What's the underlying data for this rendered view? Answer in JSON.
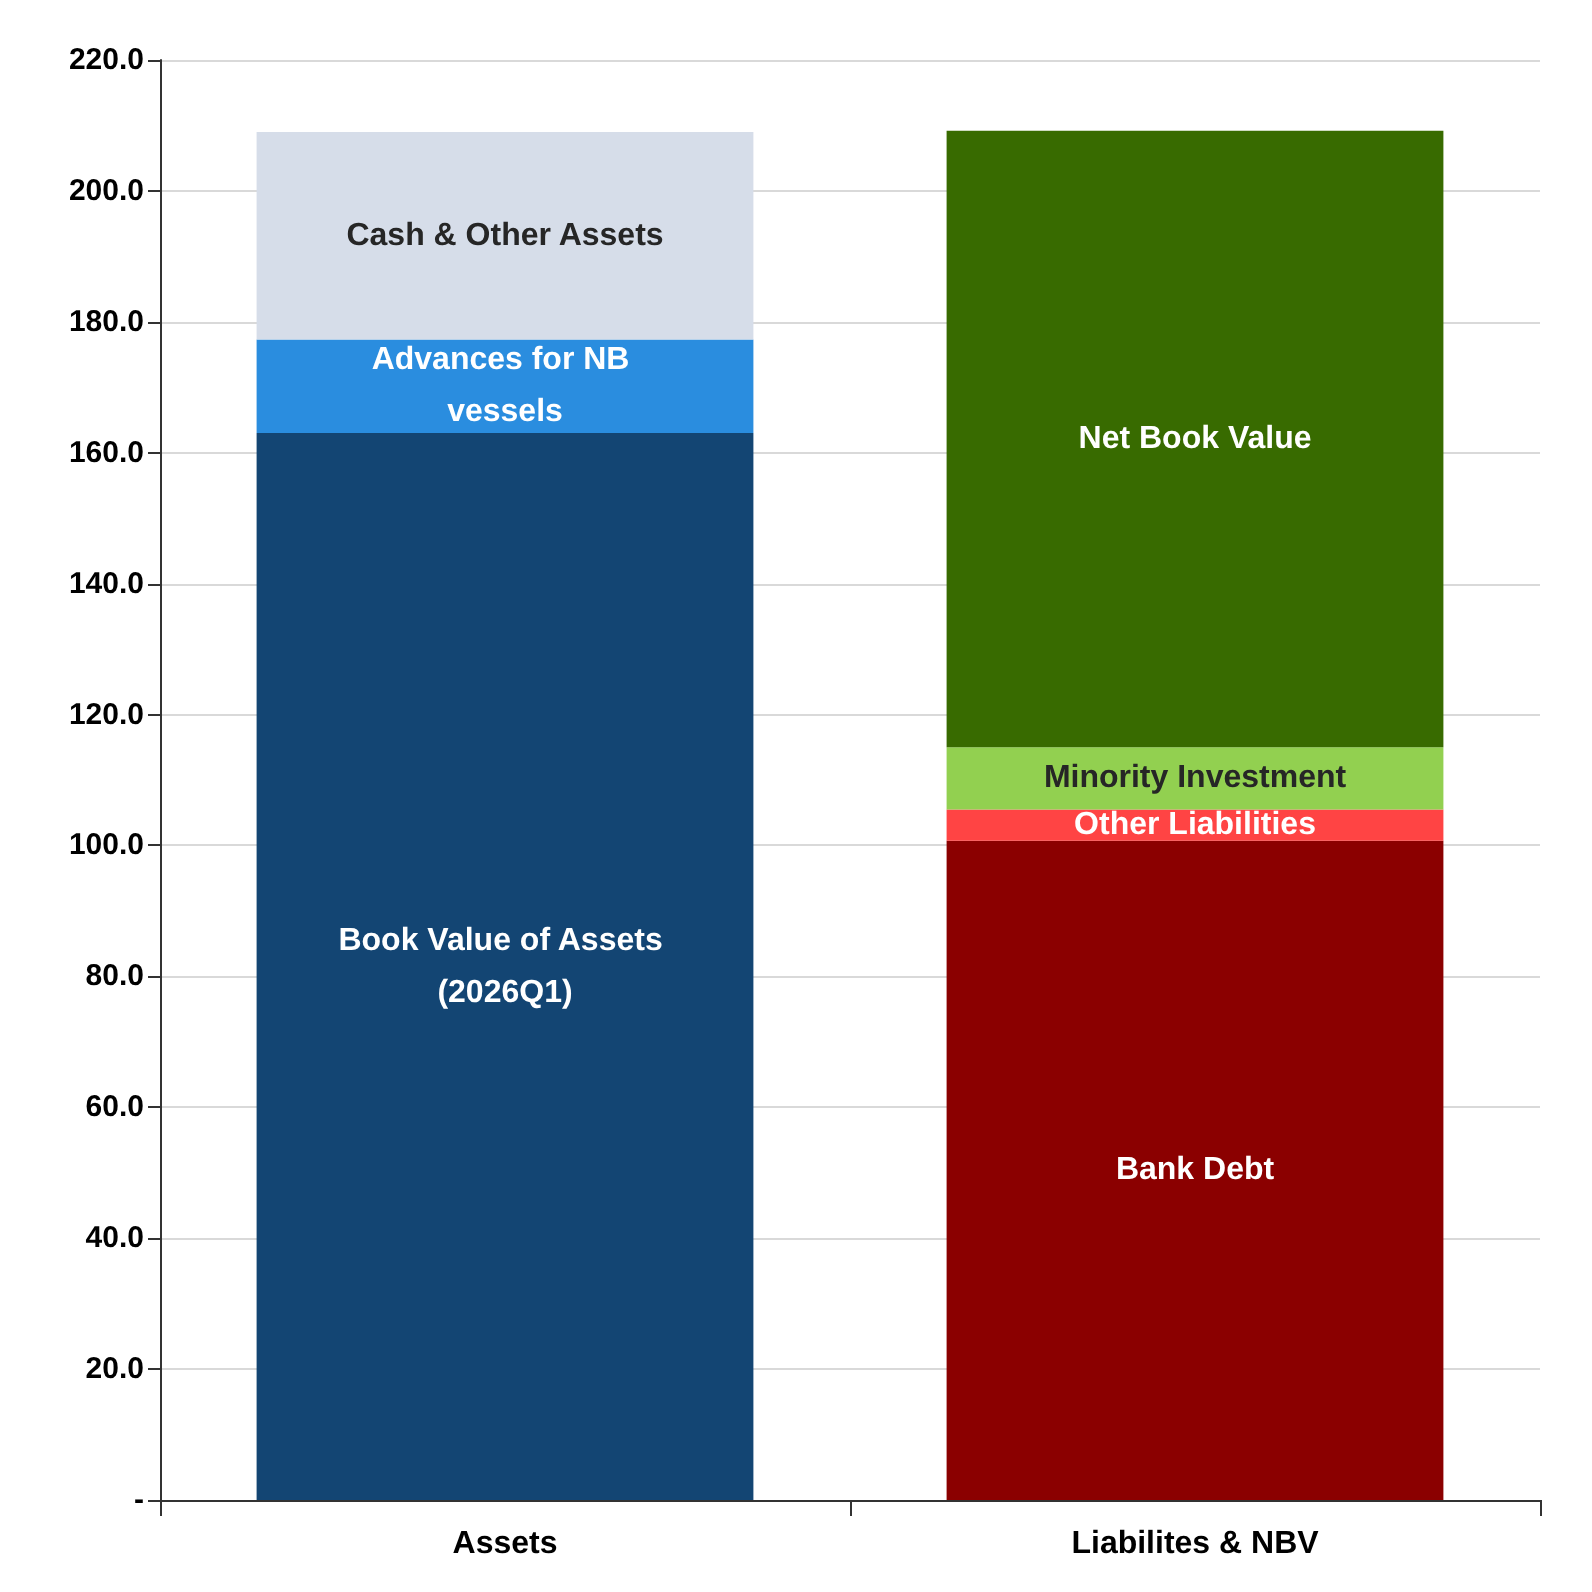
{
  "chart_data": {
    "type": "bar",
    "stacked": true,
    "categories": [
      "Assets",
      "Liabilites & NBV"
    ],
    "series": [
      {
        "name": "Book Value of Assets (2026Q1)",
        "color": "#134573",
        "values": [
          163.0,
          null
        ]
      },
      {
        "name": "Advances for NB vessels",
        "color": "#2a8ddf",
        "values": [
          14.3,
          null
        ]
      },
      {
        "name": "Cash & Other Assets",
        "color": "#d6dde9",
        "values": [
          31.7,
          null
        ]
      },
      {
        "name": "Bank Debt",
        "color": "#8b0000",
        "values": [
          null,
          100.7
        ]
      },
      {
        "name": "Other Liabilities",
        "color": "#ff4444",
        "values": [
          null,
          4.8
        ]
      },
      {
        "name": "Minority Investment",
        "color": "#92d050",
        "values": [
          null,
          9.5
        ]
      },
      {
        "name": "Net Book Value",
        "color": "#386b00",
        "values": [
          null,
          94.2
        ]
      }
    ],
    "ylim": [
      0,
      220
    ],
    "yticks": [
      {
        "value": 0,
        "label": "-"
      },
      {
        "value": 20,
        "label": "20.0"
      },
      {
        "value": 40,
        "label": "40.0"
      },
      {
        "value": 60,
        "label": "60.0"
      },
      {
        "value": 80,
        "label": "80.0"
      },
      {
        "value": 100,
        "label": "100.0"
      },
      {
        "value": 120,
        "label": "120.0"
      },
      {
        "value": 140,
        "label": "140.0"
      },
      {
        "value": 160,
        "label": "160.0"
      },
      {
        "value": 180,
        "label": "180.0"
      },
      {
        "value": 200,
        "label": "200.0"
      },
      {
        "value": 220,
        "label": "220.0"
      }
    ],
    "grid": "y",
    "legend": false
  }
}
